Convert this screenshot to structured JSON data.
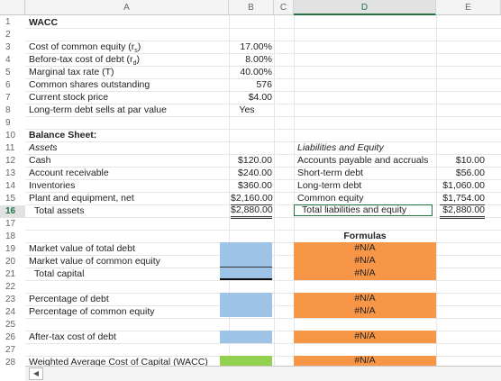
{
  "columns": [
    "A",
    "B",
    "C",
    "D",
    "E"
  ],
  "rows": [
    "1",
    "2",
    "3",
    "4",
    "5",
    "6",
    "7",
    "8",
    "9",
    "10",
    "11",
    "12",
    "13",
    "14",
    "15",
    "16",
    "17",
    "18",
    "19",
    "20",
    "21",
    "22",
    "23",
    "24",
    "25",
    "26",
    "27",
    "28"
  ],
  "title": "WACC",
  "inputs": [
    {
      "label": "Cost of common equity (r",
      "sub": "s",
      "end": ")",
      "value": "17.00%"
    },
    {
      "label": "Before-tax cost of debt (r",
      "sub": "d",
      "end": ")",
      "value": "8.00%"
    },
    {
      "label": "Marginal tax rate (T)",
      "value": "40.00%"
    },
    {
      "label": "Common shares outstanding",
      "value": "576"
    },
    {
      "label": "Current stock price",
      "value": "$4.00"
    },
    {
      "label": "Long-term debt sells at par value",
      "value": "Yes"
    }
  ],
  "balance": {
    "heading": "Balance Sheet:",
    "assets_heading": "Assets",
    "liab_heading": "Liabilities and Equity",
    "assets": [
      {
        "label": "Cash",
        "value": "$120.00"
      },
      {
        "label": "Account receivable",
        "value": "$240.00"
      },
      {
        "label": "Inventories",
        "value": "$360.00"
      },
      {
        "label": "Plant and equipment, net",
        "value": "$2,160.00"
      },
      {
        "label": "Total assets",
        "value": "$2,880.00"
      }
    ],
    "liabilities": [
      {
        "label": "Accounts payable and accruals",
        "value": "$10.00"
      },
      {
        "label": "Short-term debt",
        "value": "$56.00"
      },
      {
        "label": "Long-term debt",
        "value": "$1,060.00"
      },
      {
        "label": "Common equity",
        "value": "$1,754.00"
      },
      {
        "label": "Total liabilities and equity",
        "value": "$2,880.00"
      }
    ]
  },
  "calc": {
    "formulas_header": "Formulas",
    "na": "#N/A",
    "mv_debt": "Market value of total debt",
    "mv_equity": "Market value of common equity",
    "total_capital": "Total capital",
    "pct_debt": "Percentage of debt",
    "pct_equity": "Percentage of common equity",
    "after_tax": "After-tax cost of debt",
    "wacc": "Weighted Average Cost of Capital (WACC)"
  },
  "colors": {
    "blue": "#9dc3e6",
    "orange": "#f79646",
    "green": "#92d050",
    "accent": "#217346"
  }
}
